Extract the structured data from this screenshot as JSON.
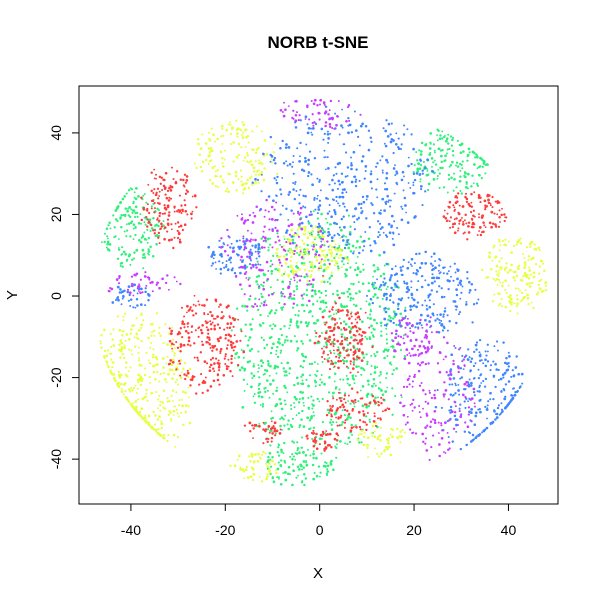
{
  "chart_data": {
    "type": "scatter",
    "title": "NORB t-SNE",
    "xlabel": "X",
    "ylabel": "Y",
    "xlim": [
      -51,
      50.5
    ],
    "ylim": [
      -51,
      51.5
    ],
    "xticks": [
      -40,
      -20,
      0,
      20,
      40
    ],
    "yticks": [
      -40,
      -20,
      0,
      20,
      40
    ],
    "grid": false,
    "legend": "none",
    "colors": {
      "red": "#ff3b3b",
      "green": "#2ff07a",
      "blue": "#3f86ff",
      "magenta": "#c83dff",
      "yellow": "#e6ff40"
    },
    "clusters": [
      {
        "color": "green",
        "cx": 0,
        "cy": -10,
        "rx": 18,
        "ry": 30,
        "n": 900
      },
      {
        "color": "green",
        "cx": -40,
        "cy": 17,
        "rx": 7,
        "ry": 10,
        "n": 170
      },
      {
        "color": "green",
        "cx": 28,
        "cy": 33,
        "rx": 9,
        "ry": 8,
        "n": 170
      },
      {
        "color": "green",
        "cx": -5,
        "cy": -42,
        "rx": 8,
        "ry": 5,
        "n": 90
      },
      {
        "color": "yellow",
        "cx": -38,
        "cy": -22,
        "rx": 11,
        "ry": 18,
        "n": 380
      },
      {
        "color": "yellow",
        "cx": -18,
        "cy": 34,
        "rx": 9,
        "ry": 9,
        "n": 160
      },
      {
        "color": "yellow",
        "cx": -2,
        "cy": 10,
        "rx": 8,
        "ry": 7,
        "n": 150
      },
      {
        "color": "yellow",
        "cx": 42,
        "cy": 5,
        "rx": 7,
        "ry": 10,
        "n": 170
      },
      {
        "color": "yellow",
        "cx": -14,
        "cy": -42,
        "rx": 5,
        "ry": 4,
        "n": 50
      },
      {
        "color": "yellow",
        "cx": 13,
        "cy": -35,
        "rx": 5,
        "ry": 5,
        "n": 50
      },
      {
        "color": "red",
        "cx": -24,
        "cy": -12,
        "rx": 8,
        "ry": 12,
        "n": 230
      },
      {
        "color": "red",
        "cx": -32,
        "cy": 22,
        "rx": 6,
        "ry": 10,
        "n": 150
      },
      {
        "color": "red",
        "cx": 5,
        "cy": -10,
        "rx": 6,
        "ry": 9,
        "n": 150
      },
      {
        "color": "red",
        "cx": 33,
        "cy": 20,
        "rx": 7,
        "ry": 6,
        "n": 130
      },
      {
        "color": "red",
        "cx": 8,
        "cy": -28,
        "rx": 7,
        "ry": 5,
        "n": 90
      },
      {
        "color": "red",
        "cx": -12,
        "cy": -33,
        "rx": 4,
        "ry": 3,
        "n": 40
      },
      {
        "color": "red",
        "cx": 1,
        "cy": -35,
        "rx": 4,
        "ry": 3,
        "n": 40
      },
      {
        "color": "blue",
        "cx": 5,
        "cy": 28,
        "rx": 18,
        "ry": 18,
        "n": 420
      },
      {
        "color": "blue",
        "cx": 22,
        "cy": 0,
        "rx": 12,
        "ry": 10,
        "n": 240
      },
      {
        "color": "blue",
        "cx": 35,
        "cy": -25,
        "rx": 10,
        "ry": 14,
        "n": 260
      },
      {
        "color": "blue",
        "cx": -18,
        "cy": 10,
        "rx": 6,
        "ry": 5,
        "n": 90
      },
      {
        "color": "blue",
        "cx": -40,
        "cy": 0,
        "rx": 5,
        "ry": 3,
        "n": 40
      },
      {
        "color": "magenta",
        "cx": -10,
        "cy": 10,
        "rx": 12,
        "ry": 14,
        "n": 180
      },
      {
        "color": "magenta",
        "cx": 25,
        "cy": -25,
        "rx": 8,
        "ry": 15,
        "n": 150
      },
      {
        "color": "magenta",
        "cx": 0,
        "cy": 45,
        "rx": 9,
        "ry": 4,
        "n": 60
      },
      {
        "color": "magenta",
        "cx": -38,
        "cy": 3,
        "rx": 8,
        "ry": 3,
        "n": 50
      },
      {
        "color": "magenta",
        "cx": 20,
        "cy": -10,
        "rx": 5,
        "ry": 6,
        "n": 60
      }
    ]
  }
}
